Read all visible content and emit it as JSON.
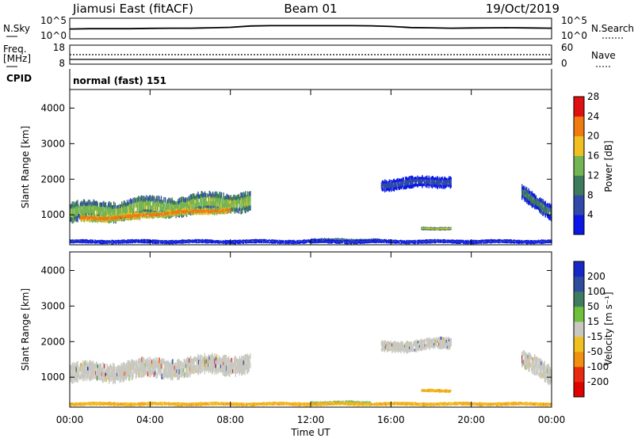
{
  "header": {
    "station": "Jiamusi East (fitACF)",
    "beam": "Beam 01",
    "date": "19/Oct/2019"
  },
  "noise_panel": {
    "left_label": "N.Sky",
    "left_ticks": [
      "10^5",
      "10^0"
    ],
    "right_label": "N.Search",
    "right_ticks": [
      "10^5",
      "10^0"
    ]
  },
  "freq_panel": {
    "left_label_1": "Freq.",
    "left_label_2": "[MHz]",
    "left_ticks": [
      "18",
      "8"
    ],
    "right_label": "Nave",
    "right_ticks": [
      "60",
      "0"
    ]
  },
  "cpid": {
    "label": "CPID",
    "value": "normal (fast) 151"
  },
  "x_axis": {
    "label": "Time UT",
    "ticks": [
      "00:00",
      "04:00",
      "08:00",
      "12:00",
      "16:00",
      "20:00",
      "00:00"
    ]
  },
  "power_colorbar": {
    "label": "Power [dB]",
    "ticks": [
      "4",
      "8",
      "12",
      "16",
      "20",
      "24",
      "28"
    ],
    "colors": [
      "#0a17e8",
      "#2f4aa8",
      "#3e7a5c",
      "#74b553",
      "#f0c020",
      "#f07a10",
      "#e01010"
    ]
  },
  "velocity_colorbar": {
    "label": "Velocity [m s⁻¹]",
    "ticks": [
      "200",
      "100",
      "50",
      "15",
      "-15",
      "-50",
      "-100",
      "-200"
    ],
    "colors": [
      "#1827c8",
      "#2f4d9e",
      "#3f7b60",
      "#70bf3a",
      "#c8c8c0",
      "#f0c020",
      "#f08f10",
      "#e82a10",
      "#e00000"
    ]
  },
  "chart_data": [
    {
      "type": "line",
      "title": "Jiamusi East (fitACF)",
      "ylabel": "N.Sky",
      "yscale": "log",
      "ylim": [
        1,
        100000
      ],
      "x": [
        "00:00",
        "01:00",
        "02:00",
        "03:00",
        "04:00",
        "05:00",
        "06:00",
        "07:00",
        "08:00",
        "09:00",
        "10:00",
        "11:00",
        "12:00",
        "13:00",
        "14:00",
        "15:00",
        "16:00",
        "17:00",
        "18:00",
        "19:00",
        "20:00",
        "21:00",
        "22:00",
        "23:00",
        "24:00"
      ],
      "series": [
        {
          "values": [
            300,
            400,
            400,
            400,
            500,
            600,
            600,
            800,
            1200,
            4000,
            5000,
            5000,
            5000,
            5000,
            5000,
            4500,
            2500,
            1000,
            800,
            600,
            700,
            800,
            900,
            700,
            600
          ]
        }
      ]
    },
    {
      "type": "line",
      "ylabel": "Freq. [MHz]",
      "ylim": [
        8,
        18
      ],
      "series": [
        {
          "values": [
            10,
            10,
            10,
            10,
            10,
            10,
            10,
            10,
            10,
            10,
            10,
            10,
            10,
            10,
            10,
            10,
            10,
            10,
            10,
            10,
            10,
            10,
            10,
            10,
            10
          ]
        }
      ]
    },
    {
      "type": "heatmap",
      "ylabel": "Slant Range [km]",
      "xlabel": "Time UT",
      "ylim": [
        180,
        4500
      ],
      "yticks": [
        1000,
        2000,
        3000,
        4000
      ],
      "color_label": "Power [dB]",
      "cmin": 0,
      "cmax": 32,
      "regions": [
        {
          "t0": 0.0,
          "t1": 9.0,
          "r_center_start": 1050,
          "r_center_end": 1400,
          "halfwidth": 260,
          "value": 20
        },
        {
          "t0": 0.5,
          "t1": 3.5,
          "r_center_start": 900,
          "r_center_end": 950,
          "halfwidth": 100,
          "value": 28
        },
        {
          "t0": 3.5,
          "t1": 8.0,
          "r_center_start": 1000,
          "r_center_end": 1150,
          "halfwidth": 90,
          "value": 28
        },
        {
          "t0": 15.5,
          "t1": 19.0,
          "r_center_start": 1850,
          "r_center_end": 1950,
          "halfwidth": 150,
          "value": 10
        },
        {
          "t0": 17.5,
          "t1": 19.0,
          "r_center_start": 620,
          "r_center_end": 620,
          "halfwidth": 40,
          "value": 22
        },
        {
          "t0": 22.5,
          "t1": 24.0,
          "r_center_start": 1600,
          "r_center_end": 1100,
          "halfwidth": 200,
          "value": 14
        },
        {
          "t0": 12.0,
          "t1": 15.5,
          "r_center_start": 280,
          "r_center_end": 280,
          "halfwidth": 50,
          "value": 18
        },
        {
          "t0": 0.0,
          "t1": 24.0,
          "r_center_start": 250,
          "r_center_end": 250,
          "halfwidth": 50,
          "value": 8
        }
      ]
    },
    {
      "type": "heatmap",
      "ylabel": "Slant Range [km]",
      "xlabel": "Time UT",
      "ylim": [
        180,
        4500
      ],
      "yticks": [
        1000,
        2000,
        3000,
        4000
      ],
      "color_label": "Velocity [m s⁻¹]",
      "regions": [
        {
          "t0": 0.0,
          "t1": 9.0,
          "r_center_start": 1100,
          "r_center_end": 1400,
          "halfwidth": 250,
          "value": 0
        },
        {
          "t0": 15.5,
          "t1": 19.0,
          "r_center_start": 1850,
          "r_center_end": 1950,
          "halfwidth": 150,
          "value": 0
        },
        {
          "t0": 17.5,
          "t1": 19.0,
          "r_center_start": 620,
          "r_center_end": 620,
          "halfwidth": 40,
          "value": -40
        },
        {
          "t0": 22.5,
          "t1": 24.0,
          "r_center_start": 1500,
          "r_center_end": 1000,
          "halfwidth": 250,
          "value": 0
        },
        {
          "t0": 12.0,
          "t1": 15.0,
          "r_center_start": 280,
          "r_center_end": 280,
          "halfwidth": 50,
          "value": 25
        },
        {
          "t0": 0.0,
          "t1": 24.0,
          "r_center_start": 250,
          "r_center_end": 250,
          "halfwidth": 45,
          "value": -40
        }
      ]
    }
  ]
}
